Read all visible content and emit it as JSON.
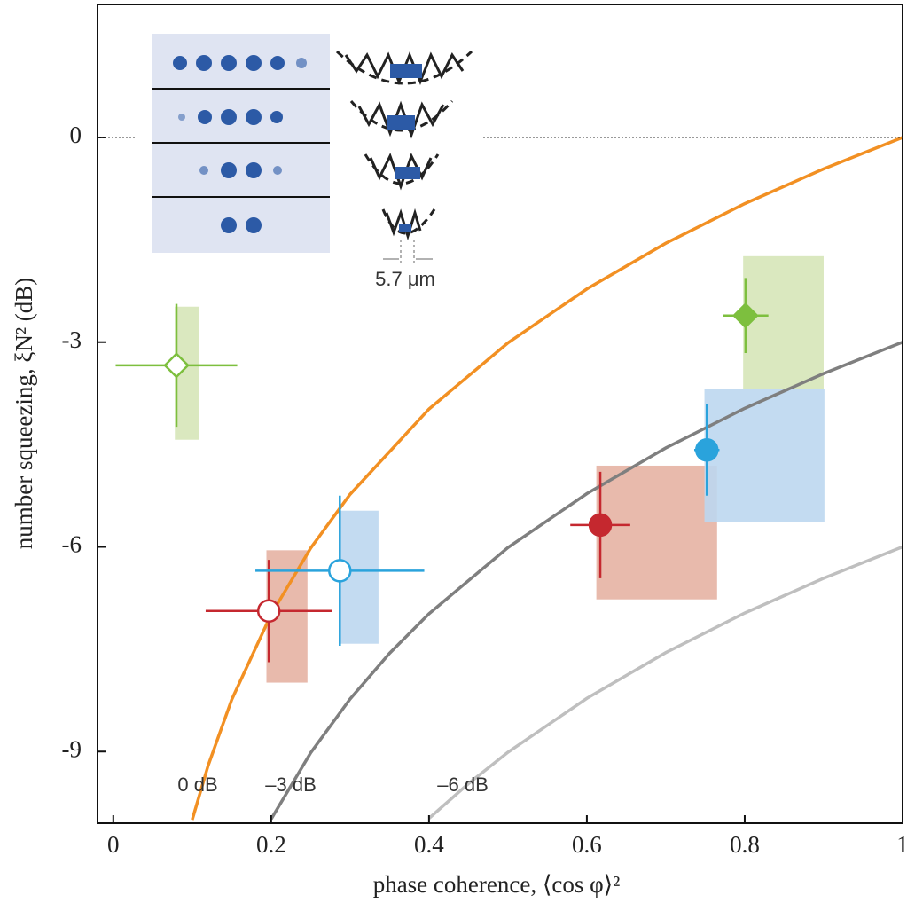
{
  "chart_data": {
    "type": "scatter",
    "xlabel": "phase coherence, ⟨cos φ⟩²",
    "ylabel": "number squeezing, ξN² (dB)",
    "xlim": [
      -0.02,
      1.0
    ],
    "xticks": [
      0,
      0.2,
      0.4,
      0.6,
      0.8,
      1
    ],
    "ylim": [
      -10.05,
      1.95
    ],
    "yticks": [
      -9,
      -6,
      -3,
      0
    ],
    "inset_label": "5.7 μm",
    "curves": [
      {
        "label": "0 dB",
        "color": "#f29023",
        "x": [
          0.1,
          0.12,
          0.15,
          0.2,
          0.25,
          0.3,
          0.4,
          0.5,
          0.6,
          0.7,
          0.8,
          0.9,
          1.0
        ],
        "values": [
          -10,
          -9.21,
          -8.24,
          -6.99,
          -6.02,
          -5.23,
          -3.98,
          -3.01,
          -2.22,
          -1.55,
          -0.97,
          -0.46,
          0
        ]
      },
      {
        "label": "–3 dB",
        "color": "#7f7f7f",
        "x": [
          0.2,
          0.25,
          0.3,
          0.35,
          0.4,
          0.5,
          0.6,
          0.7,
          0.8,
          0.9,
          1.0
        ],
        "values": [
          -9.99,
          -9.02,
          -8.23,
          -7.56,
          -6.98,
          -6.01,
          -5.22,
          -4.55,
          -3.97,
          -3.46,
          -3.0
        ]
      },
      {
        "label": "–6 dB",
        "color": "#bfbfbf",
        "x": [
          0.4,
          0.45,
          0.5,
          0.6,
          0.7,
          0.8,
          0.9,
          1.0
        ],
        "values": [
          -9.98,
          -9.47,
          -9.01,
          -8.22,
          -7.55,
          -6.97,
          -6.46,
          -6.0
        ]
      }
    ],
    "points": [
      {
        "marker": "diamond",
        "filled": false,
        "color": "#7dbf3e",
        "box_color": "#d6e6b8",
        "x": 0.08,
        "y": -3.34,
        "xerr": 0.077,
        "yerr": 0.9,
        "box_x": [
          0.078,
          0.109
        ],
        "box_y": [
          -4.43,
          -2.48
        ]
      },
      {
        "marker": "circle",
        "filled": false,
        "color": "#c5282f",
        "box_color": "#e5b3a3",
        "x": 0.197,
        "y": -6.94,
        "xerr": 0.08,
        "yerr": 0.75,
        "box_x": [
          0.194,
          0.246
        ],
        "box_y": [
          -7.99,
          -6.05
        ]
      },
      {
        "marker": "circle",
        "filled": false,
        "color": "#2aa3dc",
        "box_color": "#bcd7ef",
        "x": 0.287,
        "y": -6.35,
        "xerr": 0.107,
        "yerr": 1.1,
        "box_x": [
          0.287,
          0.336
        ],
        "box_y": [
          -7.42,
          -5.47
        ]
      },
      {
        "marker": "circle",
        "filled": true,
        "color": "#c5282f",
        "box_color": "#e5b3a3",
        "x": 0.617,
        "y": -5.68,
        "xerr": 0.038,
        "yerr": 0.78,
        "box_x": [
          0.612,
          0.765
        ],
        "box_y": [
          -6.77,
          -4.81
        ]
      },
      {
        "marker": "circle",
        "filled": true,
        "color": "#2aa3dc",
        "box_color": "#bcd7ef",
        "x": 0.752,
        "y": -4.58,
        "xerr": 0.016,
        "yerr": 0.67,
        "box_x": [
          0.749,
          0.901
        ],
        "box_y": [
          -5.64,
          -3.68
        ]
      },
      {
        "marker": "diamond",
        "filled": true,
        "color": "#7dbf3e",
        "box_color": "#d6e6b8",
        "x": 0.801,
        "y": -2.61,
        "xerr": 0.029,
        "yerr": 0.55,
        "box_x": [
          0.798,
          0.9
        ],
        "box_y": [
          -3.68,
          -1.74
        ]
      }
    ]
  }
}
